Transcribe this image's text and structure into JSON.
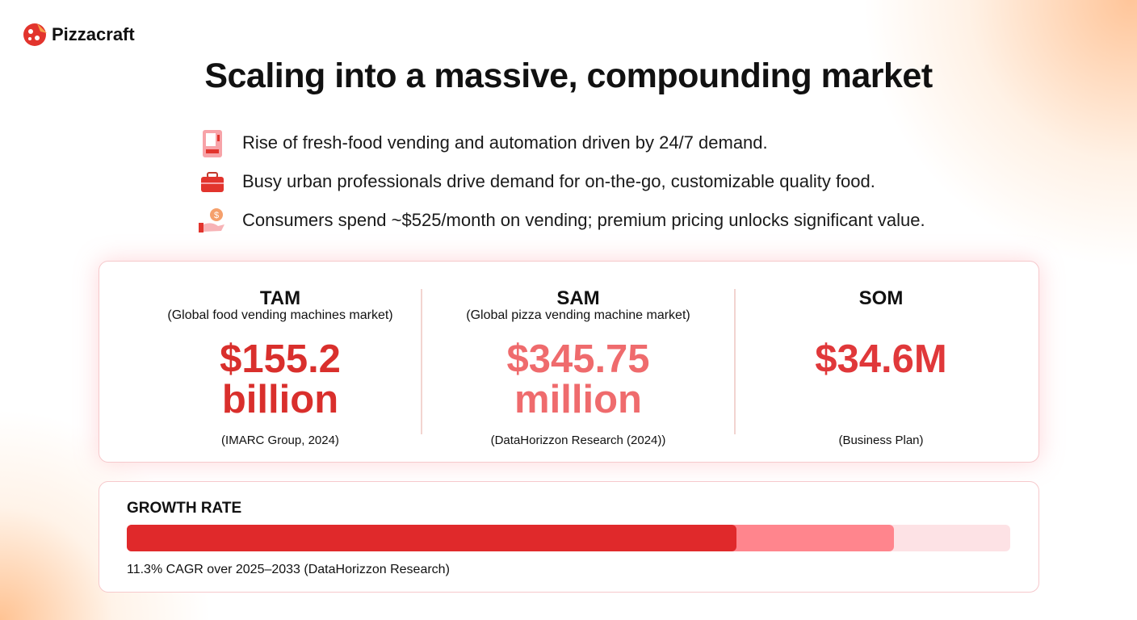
{
  "brand": "Pizzacraft",
  "title": "Scaling into a massive, compounding market",
  "bullets": [
    "Rise of fresh-food vending and automation driven by 24/7 demand.",
    "Busy urban professionals drive demand for on-the-go, customizable quality food.",
    "Consumers spend ~$525/month on vending; premium pricing unlocks significant value."
  ],
  "markets": [
    {
      "label": "TAM",
      "description": "(Global food vending machines market)",
      "value_lines": [
        "$155.2",
        "billion"
      ],
      "source": "(IMARC Group, 2024)",
      "color": "#d92f2c"
    },
    {
      "label": "SAM",
      "description": "(Global pizza vending machine market)",
      "value_lines": [
        "$345.75",
        "million"
      ],
      "source": "(DataHorizzon Research (2024))",
      "color": "#ef6b6d"
    },
    {
      "label": "SOM",
      "description": null,
      "value_lines": [
        "$34.6M"
      ],
      "source": "(Business Plan)",
      "color": "#e0383a"
    }
  ],
  "growth": {
    "heading": "GROWTH RATE",
    "caption": "11.3% CAGR over 2025–2033 (DataHorizzon Research)"
  }
}
